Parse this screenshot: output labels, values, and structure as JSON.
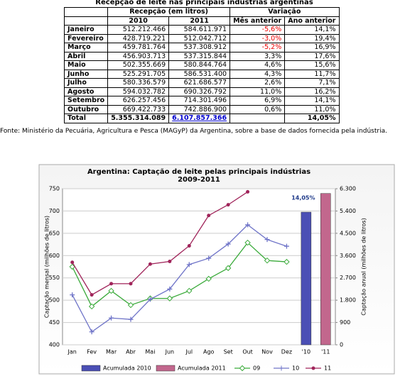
{
  "table": {
    "title": "Recepção de leite nas principais indústrias argentinas",
    "group_headers": [
      "Recepção (em litros)",
      "Variação"
    ],
    "headers": [
      "2010",
      "2011",
      "Mês anterior",
      "Ano anterior"
    ],
    "rows": [
      [
        "Janeiro",
        "512.212.466",
        "584.611.971",
        "-5,6%",
        "14,1%"
      ],
      [
        "Fevereiro",
        "428.719.221",
        "512.042.712",
        "-3,0%",
        "19,4%"
      ],
      [
        "Março",
        "459.781.764",
        "537.308.912",
        "-5,2%",
        "16,9%"
      ],
      [
        "Abril",
        "456.903.713",
        "537.315.844",
        "3,3%",
        "17,6%"
      ],
      [
        "Maio",
        "502.355.669",
        "580.844.764",
        "4,6%",
        "15,6%"
      ],
      [
        "Junho",
        "525.291.705",
        "586.531.400",
        "4,3%",
        "11,7%"
      ],
      [
        "Julho",
        "580.336.579",
        "621.686.577",
        "2,6%",
        "7,1%"
      ],
      [
        "Agosto",
        "594.032.782",
        "690.326.792",
        "11,0%",
        "16,2%"
      ],
      [
        "Setembro",
        "626.257.456",
        "714.301.496",
        "6,9%",
        "14,1%"
      ],
      [
        "Outubro",
        "669.422.733",
        "742.886.900",
        "0,6%",
        "11,0%"
      ]
    ],
    "total": [
      "Total",
      "5.355.314.089",
      "6.107.857.366",
      "14,05%"
    ],
    "source": "Fonte: Ministério da Pecuária, Agricultura e Pesca (MAGyP) da Argentina, sobre a base de dados fornecida pela indústria."
  },
  "chart_data": {
    "type": "line",
    "title": "Argentina: Captação de leite pelas principais indústrias",
    "subtitle": "2009-2011",
    "ylabel": "Captação mensal (milhões de litros)",
    "y2label": "Captação anual (milhões de litros)",
    "categories": [
      "Jan",
      "Fev",
      "Mar",
      "Abr",
      "Mai",
      "Jun",
      "Jul",
      "Ago",
      "Set",
      "Out",
      "Nov",
      "Dez",
      "'10",
      "'11"
    ],
    "ylim": [
      400,
      750
    ],
    "yticks": [
      400,
      450,
      500,
      550,
      600,
      650,
      700,
      750
    ],
    "y2lim": [
      0,
      6300
    ],
    "y2ticks": [
      0,
      900,
      {
        "value": 1800,
        "label": "1.800"
      },
      {
        "value": 2700,
        "label": "2.700"
      },
      {
        "value": 3600,
        "label": "3.600"
      },
      {
        "value": 4500,
        "label": "4.500"
      },
      {
        "value": 5400,
        "label": "5.400"
      },
      {
        "value": 6300,
        "label": "6.300"
      }
    ],
    "grid": true,
    "annotation": "14,05%",
    "series": [
      {
        "name": "Acumulada 2010",
        "type": "bar",
        "axis": "y2",
        "color": "#4b4fb5",
        "values": [
          null,
          null,
          null,
          null,
          null,
          null,
          null,
          null,
          null,
          null,
          null,
          null,
          5355,
          null
        ]
      },
      {
        "name": "Acumulada 2011",
        "type": "bar",
        "axis": "y2",
        "color": "#c2678d",
        "values": [
          null,
          null,
          null,
          null,
          null,
          null,
          null,
          null,
          null,
          null,
          null,
          null,
          null,
          6108
        ]
      },
      {
        "name": "09",
        "marker": "diamond",
        "color": "#3aaa3a",
        "values": [
          575,
          486,
          521,
          489,
          504,
          504,
          521,
          548,
          572,
          629,
          589,
          586,
          null,
          null
        ]
      },
      {
        "name": "10",
        "marker": "plus",
        "color": "#6f74c8",
        "values": [
          512,
          429,
          460,
          457,
          502,
          525,
          580,
          594,
          626,
          669,
          636,
          621,
          null,
          null
        ]
      },
      {
        "name": "11",
        "marker": "dot",
        "color": "#a0245a",
        "values": [
          585,
          512,
          537,
          537,
          581,
          587,
          622,
          690,
          714,
          743,
          null,
          null,
          null,
          null
        ]
      }
    ]
  }
}
